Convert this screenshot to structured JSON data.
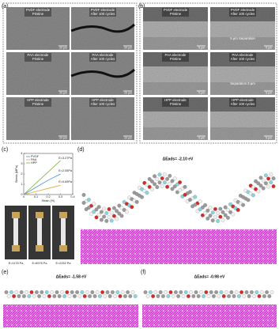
{
  "panels": {
    "a": {
      "label": "(a)",
      "images": [
        {
          "title": "PVDF electrode",
          "subtitle": "Pristine",
          "scale": "20 µm"
        },
        {
          "title": "PVDF electrode",
          "subtitle": "After 100 cycles",
          "scale": "20 µm"
        },
        {
          "title": "PAA electrode",
          "subtitle": "Pristine",
          "scale": "20 µm"
        },
        {
          "title": "PAA electrode",
          "subtitle": "After 100 cycles",
          "scale": "20 µm"
        },
        {
          "title": "HPP electrode",
          "subtitle": "Pristine",
          "scale": "20 µm"
        },
        {
          "title": "HPP electrode",
          "subtitle": "After 100 cycles",
          "scale": "20 µm"
        }
      ]
    },
    "b": {
      "label": "(b)",
      "images": [
        {
          "title": "PVDF electrode",
          "subtitle": "Pristine",
          "scale": "5 µm"
        },
        {
          "title": "PVDF electrode",
          "subtitle": "After 100 cycles",
          "scale": "5 µm",
          "note": "5 µm Separation"
        },
        {
          "title": "PAA electrode",
          "subtitle": "Pristine",
          "scale": "5 µm"
        },
        {
          "title": "PAA electrode",
          "subtitle": "After 100 cycles",
          "scale": "5 µm",
          "note": "Separation 3 µm"
        },
        {
          "title": "HPP electrode",
          "subtitle": "Pristine",
          "scale": "5 µm"
        },
        {
          "title": "HPP electrode",
          "subtitle": "After 100 cycles",
          "scale": "5 µm"
        }
      ]
    },
    "c": {
      "label": "(c)",
      "chart": {
        "type": "line",
        "x_label": "Strain (%)",
        "y_label": "Stress (MPa)",
        "xlim": [
          0,
          0.4
        ],
        "ylim": [
          0,
          4
        ],
        "xticks": [
          0,
          0.1,
          0.2,
          0.3,
          0.4
        ],
        "yticks": [
          0,
          1,
          2,
          3,
          4
        ],
        "series": [
          {
            "name": "PVDF",
            "color": "#4a8fd8",
            "x": [
              0,
              0.1,
              0.2,
              0.3
            ],
            "values": [
              0,
              0.7,
              1.4,
              2.0
            ]
          },
          {
            "name": "PAA",
            "color": "#e8a33a",
            "x": [
              0,
              0.1,
              0.2,
              0.3
            ],
            "values": [
              0,
              0.3,
              0.6,
              0.9
            ]
          },
          {
            "name": "HPP",
            "color": "#7cb342",
            "x": [
              0,
              0.1,
              0.2,
              0.3
            ],
            "values": [
              0,
              1.1,
              2.2,
              3.3
            ]
          }
        ],
        "annotations": [
          "E=3.27Pa",
          "E=2.05Pa",
          "E=0.69Pa"
        ]
      },
      "photos": [
        "E=1178 Pa",
        "E=6978 Pa",
        "E=2262 Pa"
      ]
    },
    "d": {
      "label": "(d)",
      "energy": "ΔEads= -2.10 eV"
    },
    "e": {
      "label": "(e)",
      "energy": "ΔEads= -1.58 eV"
    },
    "f": {
      "label": "(f)",
      "energy": "ΔEads= -0.98 eV"
    }
  }
}
